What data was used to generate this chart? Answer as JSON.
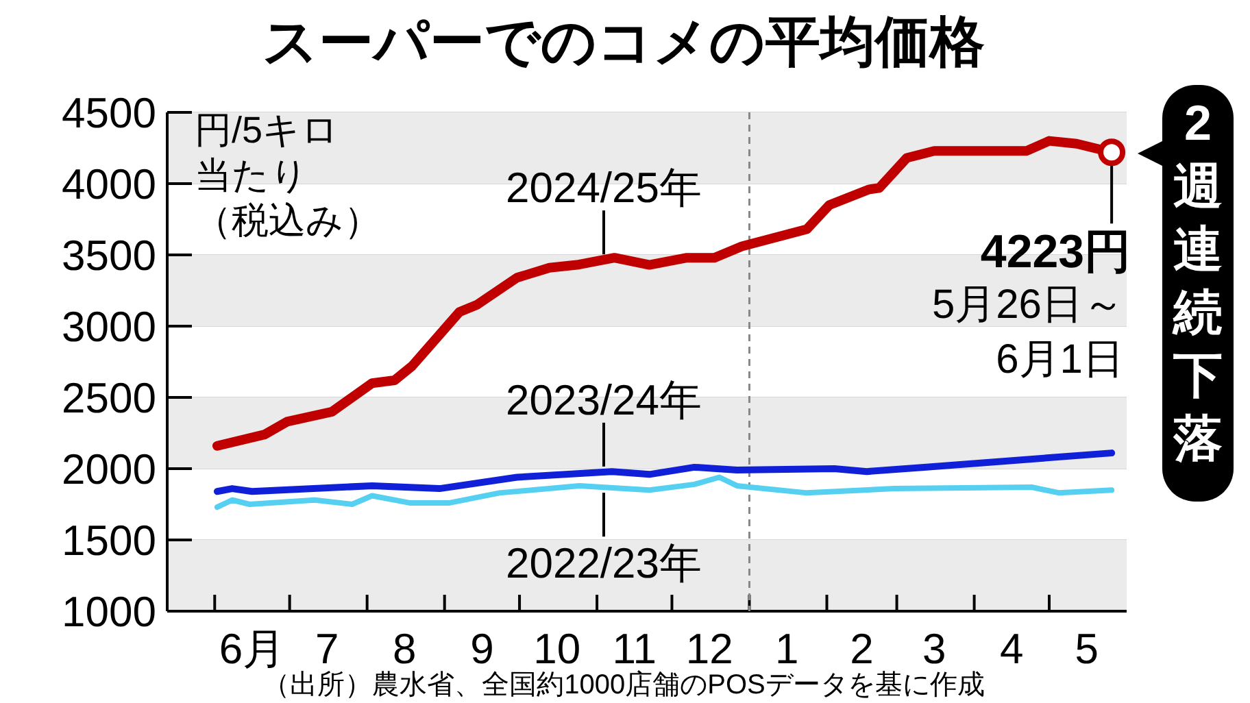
{
  "chart_data": {
    "type": "line",
    "title": "スーパーでのコメの平均価格",
    "ylabel": "円/5キロ当たり（税込み）",
    "xlim": [
      "2024-05-13",
      "2025-06-01"
    ],
    "xticks": [
      {
        "value": "2024-06-01",
        "label": null
      },
      {
        "value": "2024-06-16",
        "label": "6月"
      },
      {
        "value": "2024-07-01",
        "label": null
      },
      {
        "value": "2024-07-16",
        "label": "7"
      },
      {
        "value": "2024-08-01",
        "label": null
      },
      {
        "value": "2024-08-16",
        "label": "8"
      },
      {
        "value": "2024-09-01",
        "label": null
      },
      {
        "value": "2024-09-16",
        "label": "9"
      },
      {
        "value": "2024-10-01",
        "label": null
      },
      {
        "value": "2024-10-16",
        "label": "10"
      },
      {
        "value": "2024-11-01",
        "label": null
      },
      {
        "value": "2024-11-16",
        "label": "11"
      },
      {
        "value": "2024-12-01",
        "label": null
      },
      {
        "value": "2024-12-16",
        "label": "12"
      },
      {
        "value": "2025-01-01",
        "label": null
      },
      {
        "value": "2025-01-16",
        "label": "1"
      },
      {
        "value": "2025-02-01",
        "label": null
      },
      {
        "value": "2025-02-15",
        "label": "2"
      },
      {
        "value": "2025-03-01",
        "label": null
      },
      {
        "value": "2025-03-16",
        "label": "3"
      },
      {
        "value": "2025-04-01",
        "label": null
      },
      {
        "value": "2025-04-16",
        "label": "4"
      },
      {
        "value": "2025-05-01",
        "label": null
      },
      {
        "value": "2025-05-16",
        "label": "5"
      }
    ],
    "ylim": [
      1000,
      4500
    ],
    "yticks": [
      1000,
      1500,
      2000,
      2500,
      3000,
      3500,
      4000,
      4500
    ],
    "grid": "y",
    "ref_lines": [
      {
        "axis": "x",
        "value": "2025-01-01",
        "color": "#888888",
        "line_style": "dashed"
      }
    ],
    "series": [
      {
        "name": "2022/23年",
        "color": "#55d0f0",
        "x": [
          "2024-06-02",
          "2024-06-08",
          "2024-06-15",
          "2024-07-11",
          "2024-07-26",
          "2024-08-03",
          "2024-08-18",
          "2024-09-03",
          "2024-09-23",
          "2024-10-25",
          "2024-11-22",
          "2024-12-10",
          "2024-12-20",
          "2024-12-27",
          "2025-01-24",
          "2025-02-28",
          "2025-04-24",
          "2025-05-05",
          "2025-05-26"
        ],
        "values": [
          1730,
          1780,
          1750,
          1780,
          1750,
          1810,
          1760,
          1760,
          1830,
          1880,
          1850,
          1890,
          1940,
          1880,
          1830,
          1860,
          1870,
          1830,
          1850
        ]
      },
      {
        "name": "2023/24年",
        "color": "#1020d8",
        "x": [
          "2024-06-02",
          "2024-06-08",
          "2024-06-16",
          "2024-08-03",
          "2024-08-30",
          "2024-09-30",
          "2024-11-07",
          "2024-11-22",
          "2024-12-10",
          "2024-12-27",
          "2025-02-04",
          "2025-02-17",
          "2025-03-12",
          "2025-05-26"
        ],
        "values": [
          1840,
          1860,
          1840,
          1880,
          1860,
          1940,
          1980,
          1960,
          2010,
          1990,
          2000,
          1980,
          2010,
          2110
        ]
      },
      {
        "name": "2024/25年",
        "color": "#c00000",
        "x": [
          "2024-06-02",
          "2024-06-21",
          "2024-06-30",
          "2024-07-18",
          "2024-08-03",
          "2024-08-12",
          "2024-08-19",
          "2024-09-07",
          "2024-09-14",
          "2024-09-30",
          "2024-10-13",
          "2024-10-24",
          "2024-11-08",
          "2024-11-22",
          "2024-12-07",
          "2024-12-18",
          "2024-12-29",
          "2025-01-11",
          "2025-01-24",
          "2025-02-02",
          "2025-02-18",
          "2025-02-22",
          "2025-03-05",
          "2025-03-16",
          "2025-04-22",
          "2025-05-01",
          "2025-05-12",
          "2025-05-26"
        ],
        "values": [
          2160,
          2240,
          2330,
          2400,
          2600,
          2620,
          2720,
          3100,
          3150,
          3340,
          3410,
          3430,
          3480,
          3430,
          3480,
          3480,
          3560,
          3620,
          3680,
          3850,
          3960,
          3970,
          4180,
          4230,
          4230,
          4300,
          4280,
          4220
        ]
      }
    ],
    "annotations": [
      {
        "text": "4223円",
        "x": "2025-05-26",
        "y": 4220
      },
      "5月26日～\n6月1日",
      "2週連続下落",
      "（出所）農水省、全国約1000店舗のPOSデータを基に作成"
    ]
  }
}
